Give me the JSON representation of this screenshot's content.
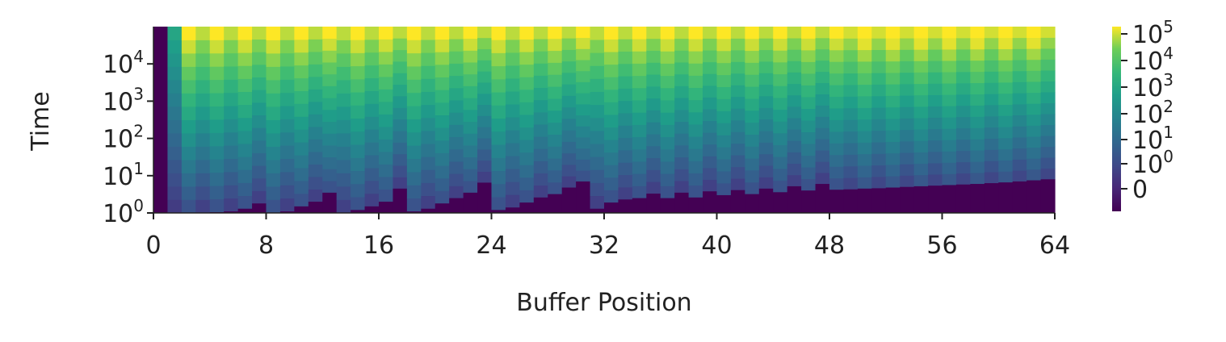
{
  "chart_data": {
    "type": "heatmap",
    "title": "",
    "xlabel": "Buffer Position",
    "ylabel": "Time",
    "x_axis": {
      "range": [
        0,
        64
      ],
      "ticks": [
        0,
        8,
        16,
        24,
        32,
        40,
        48,
        56,
        64
      ],
      "tick_labels": [
        "0",
        "8",
        "16",
        "24",
        "32",
        "40",
        "48",
        "56",
        "64"
      ]
    },
    "y_axis": {
      "scale": "log",
      "range": [
        1,
        100000
      ],
      "ticks": [
        1,
        10,
        100,
        1000,
        10000
      ],
      "tick_labels": [
        {
          "base": "10",
          "exp": "0"
        },
        {
          "base": "10",
          "exp": "1"
        },
        {
          "base": "10",
          "exp": "2"
        },
        {
          "base": "10",
          "exp": "3"
        },
        {
          "base": "10",
          "exp": "4"
        }
      ]
    },
    "columns": 64,
    "value_note_description_removed": true,
    "colorbar": {
      "colormap": "viridis",
      "scale": "symlog",
      "tick_labels": [
        {
          "base": "10",
          "exp": "5"
        },
        {
          "base": "10",
          "exp": "4"
        },
        {
          "base": "10",
          "exp": "3"
        },
        {
          "base": "10",
          "exp": "2"
        },
        {
          "base": "10",
          "exp": "1"
        },
        {
          "base": "10",
          "exp": "0"
        },
        {
          "base": "0",
          "exp": ""
        }
      ]
    },
    "column_bottom_boundary_t": [
      1.0,
      1.0,
      1.0,
      1.0,
      1.05,
      1.1,
      1.3,
      1.8,
      1.0,
      1.1,
      1.5,
      2.0,
      3.5,
      1.0,
      1.2,
      1.5,
      2.0,
      4.5,
      1.1,
      1.3,
      1.8,
      2.5,
      3.5,
      6.5,
      1.2,
      1.4,
      1.9,
      2.6,
      3.2,
      4.8,
      7.0,
      1.3,
      1.9,
      2.3,
      2.5,
      3.3,
      2.5,
      3.5,
      2.6,
      3.8,
      3.0,
      4.1,
      3.2,
      4.5,
      3.6,
      5.2,
      4.0,
      6.0,
      4.2,
      4.3,
      4.5,
      4.6,
      4.8,
      5.0,
      5.2,
      5.4,
      5.6,
      5.8,
      6.0,
      6.3,
      6.6,
      7.0,
      7.5,
      8.0
    ],
    "column_top_color_level": [
      "yellow",
      "dark-purple",
      "green",
      "green",
      "yellow-green",
      "yellow-green",
      "green",
      "yellow-green",
      "yellow",
      "yellow",
      "yellow-green",
      "yellow",
      "yellow",
      "yellow-green",
      "yellow",
      "yellow",
      "yellow-green",
      "yellow",
      "yellow",
      "yellow-green",
      "yellow",
      "yellow",
      "yellow-green",
      "yellow",
      "yellow",
      "yellow",
      "yellow",
      "yellow",
      "yellow",
      "yellow",
      "yellow",
      "yellow",
      "yellow",
      "yellow",
      "yellow",
      "yellow",
      "yellow",
      "yellow",
      "yellow",
      "yellow",
      "yellow",
      "yellow",
      "yellow",
      "yellow",
      "yellow",
      "yellow",
      "yellow",
      "yellow",
      "yellow",
      "yellow",
      "yellow",
      "yellow",
      "yellow",
      "yellow",
      "yellow",
      "yellow",
      "yellow",
      "yellow",
      "yellow",
      "yellow",
      "yellow",
      "yellow",
      "yellow",
      "yellow"
    ]
  }
}
